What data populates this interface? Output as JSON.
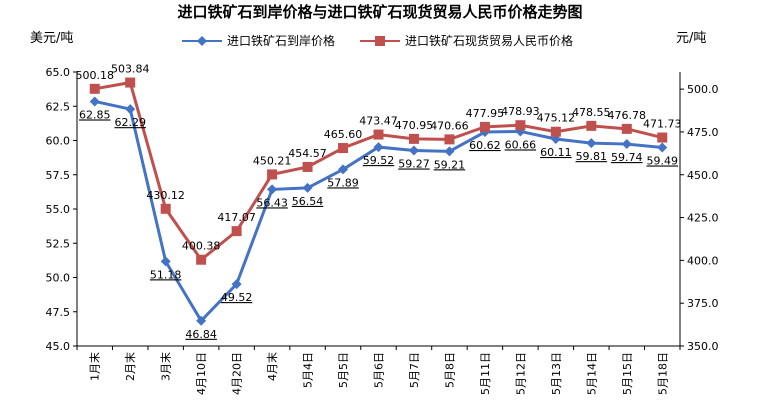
{
  "chart_data": {
    "type": "line",
    "title": "进口铁矿石到岸价格与进口铁矿石现货贸易人民币价格走势图",
    "ylabel_left": "美元/吨",
    "ylabel_right": "元/吨",
    "categories": [
      "1月末",
      "2月末",
      "3月末",
      "4月10日",
      "4月20日",
      "4月末",
      "5月4日",
      "5月5日",
      "5月6日",
      "5月7日",
      "5月8日",
      "5月11日",
      "5月12日",
      "5月13日",
      "5月14日",
      "5月15日",
      "5月18日"
    ],
    "series": [
      {
        "name": "进口铁矿石到岸价格",
        "axis": "left",
        "color": "#4472C4",
        "marker": "diamond",
        "values": [
          62.85,
          62.29,
          51.18,
          46.84,
          49.52,
          56.43,
          56.54,
          57.89,
          59.52,
          59.27,
          59.21,
          60.62,
          60.66,
          60.11,
          59.81,
          59.74,
          59.49
        ]
      },
      {
        "name": "进口铁矿石现货贸易人民币价格",
        "axis": "right",
        "color": "#C0504D",
        "marker": "square",
        "values": [
          500.18,
          503.84,
          430.12,
          400.38,
          417.07,
          450.21,
          454.57,
          465.6,
          473.47,
          470.95,
          470.66,
          477.95,
          478.93,
          475.12,
          478.55,
          476.78,
          471.73
        ]
      }
    ],
    "left_axis": {
      "min": 45.0,
      "max": 65.0,
      "step": 2.5,
      "ticks": [
        "45.0",
        "47.5",
        "50.0",
        "52.5",
        "55.0",
        "57.5",
        "60.0",
        "62.5",
        "65.0"
      ]
    },
    "right_axis": {
      "min": 350.0,
      "max": 510.0,
      "step": 25,
      "ticks": [
        "350.0",
        "375.0",
        "400.0",
        "425.0",
        "450.0",
        "475.0",
        "500.0"
      ]
    },
    "legend_position": "top-center",
    "grid": false
  }
}
